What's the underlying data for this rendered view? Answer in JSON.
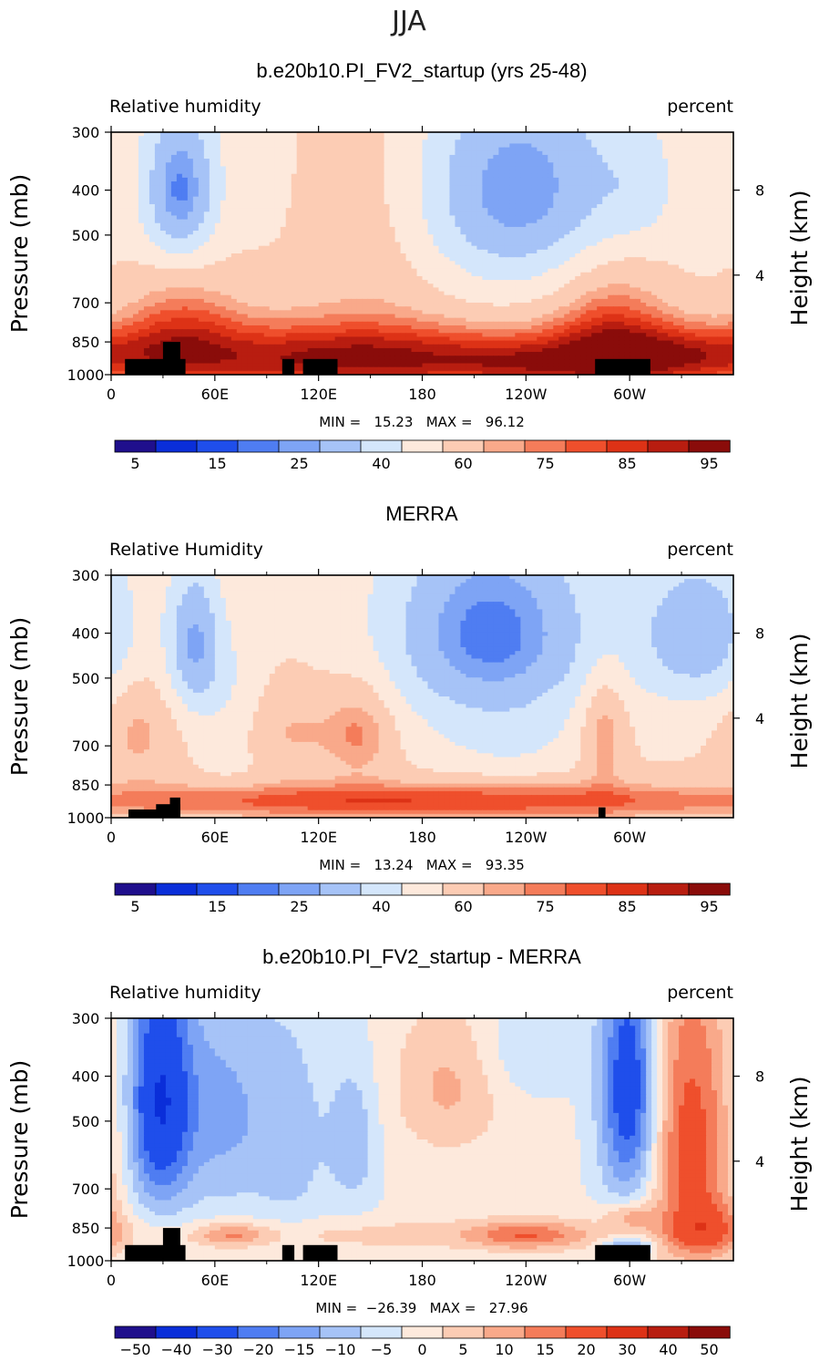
{
  "figure_title": "JJA",
  "colors": {
    "seq": [
      "#1f0f8c",
      "#0a2ed9",
      "#1f4eeb",
      "#4f7df2",
      "#7ea4f5",
      "#a6c3f7",
      "#d4e6fb",
      "#fde9dc",
      "#fcccb4",
      "#f9a98a",
      "#f47c5a",
      "#ef4f2c",
      "#dd3216",
      "#b81d10",
      "#8a0c0a"
    ],
    "diff": [
      "#1f0f8c",
      "#0a2ed9",
      "#1f4eeb",
      "#4f7df2",
      "#7ea4f5",
      "#a6c3f7",
      "#d4e6fb",
      "#fde9dc",
      "#fcccb4",
      "#f9a98a",
      "#f47c5a",
      "#ef4f2c",
      "#dd3216",
      "#b81d10",
      "#8a0c0a"
    ],
    "land": "#000000"
  },
  "chart_data": [
    {
      "type": "heatmap",
      "title": "b.e20b10.PI_FV2_startup (yrs 25-48)",
      "left_label": "Relative humidity",
      "right_label": "percent",
      "ylabel": "Pressure (mb)",
      "ylabel_right": "Height (km)",
      "x_ticks": [
        "0",
        "60E",
        "120E",
        "180",
        "120W",
        "60W"
      ],
      "x_tick_lons": [
        0,
        60,
        120,
        180,
        240,
        300
      ],
      "xlim": [
        0,
        360
      ],
      "y_ticks": [
        "300",
        "400",
        "500",
        "700",
        "850",
        "1000"
      ],
      "y_tick_values": [
        300,
        400,
        500,
        700,
        850,
        1000
      ],
      "ylim": [
        1000,
        300
      ],
      "height_ticks": [
        "8",
        "4"
      ],
      "height_tick_pressures": [
        400,
        610
      ],
      "stats": "MIN =   15.23   MAX =   96.12",
      "levels": [
        5,
        10,
        15,
        20,
        25,
        30,
        40,
        50,
        60,
        70,
        75,
        80,
        85,
        90,
        95
      ],
      "colorbar_labels": [
        "5",
        "15",
        "25",
        "40",
        "60",
        "75",
        "85",
        "95"
      ],
      "colorbar_label_indices": [
        0,
        2,
        4,
        6,
        8,
        10,
        12,
        14
      ],
      "field": {
        "base": 58,
        "features": [
          {
            "lon": 40,
            "p": 400,
            "w": 15,
            "h": 110,
            "a": -35
          },
          {
            "lon": 235,
            "p": 400,
            "w": 45,
            "h": 150,
            "a": -33
          },
          {
            "lon": 155,
            "p": 450,
            "w": 30,
            "h": 250,
            "a": 10
          },
          {
            "lon": 305,
            "p": 400,
            "w": 15,
            "h": 80,
            "a": -8
          },
          {
            "lon": 180,
            "p": 930,
            "w": 170,
            "h": 110,
            "a": 33
          },
          {
            "lon": 40,
            "p": 780,
            "w": 25,
            "h": 150,
            "a": 18
          },
          {
            "lon": 290,
            "p": 800,
            "w": 25,
            "h": 190,
            "a": 22
          },
          {
            "lon": 340,
            "p": 900,
            "w": 30,
            "h": 90,
            "a": 14
          },
          {
            "lon": 120,
            "p": 850,
            "w": 55,
            "h": 150,
            "a": 8
          },
          {
            "lon": 240,
            "p": 950,
            "w": 25,
            "h": 60,
            "a": 6
          }
        ]
      },
      "land": [
        {
          "lon0": 8,
          "lon1": 43,
          "p_top": 925
        },
        {
          "lon0": 30,
          "lon1": 40,
          "p_top": 850
        },
        {
          "lon0": 99,
          "lon1": 106,
          "p_top": 925
        },
        {
          "lon0": 111,
          "lon1": 131,
          "p_top": 925
        },
        {
          "lon0": 280,
          "lon1": 312,
          "p_top": 925
        }
      ]
    },
    {
      "type": "heatmap",
      "title": "MERRA",
      "left_label": "Relative Humidity",
      "right_label": "percent",
      "ylabel": "Pressure (mb)",
      "ylabel_right": "Height (km)",
      "x_ticks": [
        "0",
        "60E",
        "120E",
        "180",
        "120W",
        "60W"
      ],
      "x_tick_lons": [
        0,
        60,
        120,
        180,
        240,
        300
      ],
      "xlim": [
        0,
        360
      ],
      "y_ticks": [
        "300",
        "400",
        "500",
        "700",
        "850",
        "1000"
      ],
      "y_tick_values": [
        300,
        400,
        500,
        700,
        850,
        1000
      ],
      "ylim": [
        1000,
        300
      ],
      "height_ticks": [
        "8",
        "4"
      ],
      "height_tick_pressures": [
        400,
        610
      ],
      "stats": "MIN =   13.24   MAX =   93.35",
      "levels": [
        5,
        10,
        15,
        20,
        25,
        30,
        40,
        50,
        60,
        70,
        75,
        80,
        85,
        90,
        95
      ],
      "colorbar_labels": [
        "5",
        "15",
        "25",
        "40",
        "60",
        "75",
        "85",
        "95"
      ],
      "colorbar_label_indices": [
        0,
        2,
        4,
        6,
        8,
        10,
        12,
        14
      ],
      "field": {
        "base": 60,
        "features": [
          {
            "lon": 220,
            "p": 400,
            "w": 45,
            "h": 150,
            "a": -38
          },
          {
            "lon": 48,
            "p": 420,
            "w": 11,
            "h": 110,
            "a": -30
          },
          {
            "lon": 340,
            "p": 400,
            "w": 25,
            "h": 110,
            "a": -28
          },
          {
            "lon": 70,
            "p": 600,
            "w": 14,
            "h": 160,
            "a": -12
          },
          {
            "lon": 180,
            "p": 920,
            "w": 180,
            "h": 60,
            "a": 25
          },
          {
            "lon": 145,
            "p": 650,
            "w": 14,
            "h": 110,
            "a": 16
          },
          {
            "lon": 285,
            "p": 650,
            "w": 9,
            "h": 130,
            "a": 18
          },
          {
            "lon": 15,
            "p": 650,
            "w": 14,
            "h": 130,
            "a": 12
          },
          {
            "lon": 80,
            "p": 650,
            "w": 22,
            "h": 100,
            "a": 6
          },
          {
            "lon": 110,
            "p": 650,
            "w": 20,
            "h": 100,
            "a": 8
          },
          {
            "lon": 230,
            "p": 700,
            "w": 30,
            "h": 80,
            "a": -8
          }
        ]
      },
      "land": [
        {
          "lon0": 10,
          "lon1": 40,
          "p_top": 960
        },
        {
          "lon0": 26,
          "lon1": 40,
          "p_top": 935
        },
        {
          "lon0": 34,
          "lon1": 40,
          "p_top": 905
        },
        {
          "lon0": 282,
          "lon1": 286,
          "p_top": 950
        }
      ]
    },
    {
      "type": "heatmap",
      "title": "b.e20b10.PI_FV2_startup - MERRA",
      "left_label": "Relative humidity",
      "right_label": "percent",
      "ylabel": "Pressure (mb)",
      "ylabel_right": "Height (km)",
      "x_ticks": [
        "0",
        "60E",
        "120E",
        "180",
        "120W",
        "60W"
      ],
      "x_tick_lons": [
        0,
        60,
        120,
        180,
        240,
        300
      ],
      "xlim": [
        0,
        360
      ],
      "y_ticks": [
        "300",
        "400",
        "500",
        "700",
        "850",
        "1000"
      ],
      "y_tick_values": [
        300,
        400,
        500,
        700,
        850,
        1000
      ],
      "ylim": [
        1000,
        300
      ],
      "height_ticks": [
        "8",
        "4"
      ],
      "height_tick_pressures": [
        400,
        610
      ],
      "stats": "MIN =  −26.39   MAX =   27.96",
      "levels": [
        -50,
        -40,
        -30,
        -20,
        -15,
        -10,
        -5,
        0,
        5,
        10,
        15,
        20,
        30,
        40,
        50
      ],
      "colorbar_labels": [
        "−50",
        "−40",
        "−30",
        "−20",
        "−15",
        "−10",
        "−5",
        "0",
        "5",
        "10",
        "15",
        "20",
        "30",
        "40",
        "50"
      ],
      "colorbar_label_indices": [
        0,
        1,
        2,
        3,
        4,
        5,
        6,
        7,
        8,
        9,
        10,
        11,
        12,
        13,
        14
      ],
      "field": {
        "base": 1,
        "features": [
          {
            "lon": 28,
            "p": 450,
            "w": 13,
            "h": 200,
            "a": -30
          },
          {
            "lon": 300,
            "p": 430,
            "w": 12,
            "h": 200,
            "a": -28
          },
          {
            "lon": 335,
            "p": 550,
            "w": 17,
            "h": 290,
            "a": 22
          },
          {
            "lon": 65,
            "p": 480,
            "w": 20,
            "h": 200,
            "a": -12
          },
          {
            "lon": 105,
            "p": 550,
            "w": 15,
            "h": 220,
            "a": -8
          },
          {
            "lon": 140,
            "p": 550,
            "w": 10,
            "h": 140,
            "a": -10
          },
          {
            "lon": 195,
            "p": 420,
            "w": 22,
            "h": 110,
            "a": 10
          },
          {
            "lon": 240,
            "p": 880,
            "w": 22,
            "h": 45,
            "a": 14
          },
          {
            "lon": 70,
            "p": 880,
            "w": 14,
            "h": 35,
            "a": 12
          },
          {
            "lon": 300,
            "p": 800,
            "w": 10,
            "h": 40,
            "a": 12
          },
          {
            "lon": 180,
            "p": 880,
            "w": 150,
            "h": 50,
            "a": 6
          },
          {
            "lon": 345,
            "p": 850,
            "w": 14,
            "h": 80,
            "a": 15
          },
          {
            "lon": 300,
            "p": 930,
            "w": 10,
            "h": 30,
            "a": -15
          },
          {
            "lon": 240,
            "p": 350,
            "w": 20,
            "h": 60,
            "a": -6
          }
        ]
      },
      "land": [
        {
          "lon0": 8,
          "lon1": 43,
          "p_top": 925
        },
        {
          "lon0": 30,
          "lon1": 40,
          "p_top": 850
        },
        {
          "lon0": 99,
          "lon1": 106,
          "p_top": 925
        },
        {
          "lon0": 111,
          "lon1": 131,
          "p_top": 925
        },
        {
          "lon0": 280,
          "lon1": 312,
          "p_top": 925
        }
      ]
    }
  ]
}
